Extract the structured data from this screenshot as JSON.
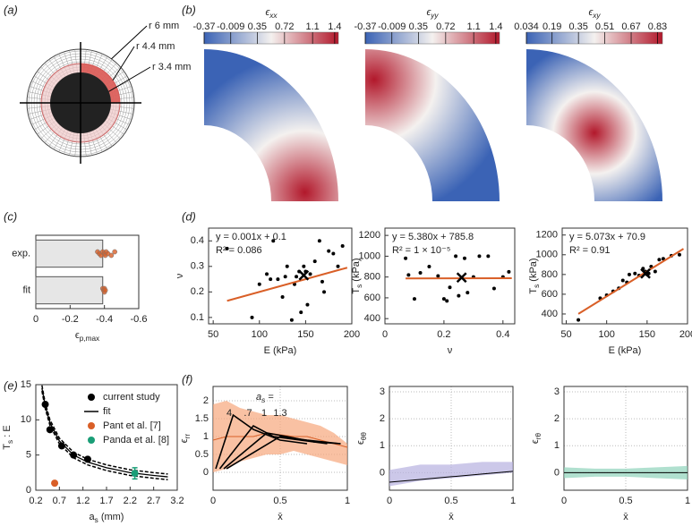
{
  "chart_data": [
    {
      "type": "annulus",
      "label": "(a)",
      "rings": [
        {
          "value": 6,
          "label": "r 6 mm"
        },
        {
          "value": 4.4,
          "label": "r 4.4 mm"
        },
        {
          "value": 3.4,
          "label": "r 3.4 mm"
        }
      ],
      "colors": [
        "#222222",
        "#f0c8c8",
        "#d9534f"
      ]
    },
    {
      "type": "heatmap",
      "label": "(b)",
      "title": {
        "main": "ϵ",
        "sub": "xx"
      },
      "clim": [
        -0.37,
        1.45
      ],
      "cticks": [
        -0.37,
        -0.009,
        0.35,
        0.72,
        1.1,
        1.4
      ],
      "colormap": [
        "#3b63b5",
        "#f4f1ef",
        "#b2182b"
      ],
      "hot": "bottom-right"
    },
    {
      "type": "heatmap",
      "title": {
        "main": "ϵ",
        "sub": "yy"
      },
      "clim": [
        -0.37,
        1.45
      ],
      "cticks": [
        -0.37,
        -0.009,
        0.35,
        0.72,
        1.1,
        1.4
      ],
      "colormap": [
        "#3b63b5",
        "#f4f1ef",
        "#b2182b"
      ],
      "hot": "top-left"
    },
    {
      "type": "heatmap",
      "title": {
        "main": "ϵ",
        "sub": "xy"
      },
      "clim": [
        0.034,
        0.86
      ],
      "cticks": [
        0.034,
        0.19,
        0.35,
        0.51,
        0.67,
        0.83
      ],
      "colormap": [
        "#3b63b5",
        "#f4f1ef",
        "#b2182b"
      ],
      "hot": "diagonal"
    },
    {
      "type": "hbar",
      "label": "(c)",
      "categories": [
        "exp.",
        "fit"
      ],
      "values": [
        -0.39,
        -0.39
      ],
      "color": "#e6e6e6",
      "points": [
        [
          -0.36,
          -0.37,
          -0.38,
          -0.39,
          -0.4,
          -0.405,
          -0.41,
          -0.42,
          -0.44,
          -0.46
        ],
        [
          -0.39,
          -0.395,
          -0.4,
          -0.4,
          -0.405
        ]
      ],
      "point_color": "#d95f27",
      "xlim": [
        0,
        -0.6
      ],
      "xticks": [
        0,
        -0.2,
        -0.4,
        -0.6
      ],
      "xlabel": {
        "main": "ϵ",
        "sub": "p,max"
      }
    },
    {
      "type": "scatter",
      "label": "(d)",
      "x": [
        65,
        92,
        100,
        108,
        112,
        115,
        120,
        125,
        128,
        130,
        135,
        138,
        140,
        143,
        145,
        148,
        150,
        152,
        155,
        160,
        165,
        168,
        170,
        175,
        180,
        185,
        190
      ],
      "values": [
        0.37,
        0.1,
        0.23,
        0.27,
        0.25,
        0.4,
        0.25,
        0.18,
        0.26,
        0.3,
        0.09,
        0.23,
        0.26,
        0.28,
        0.12,
        0.3,
        0.28,
        0.15,
        0.27,
        0.32,
        0.4,
        0.24,
        0.2,
        0.36,
        0.35,
        0.3,
        0.38
      ],
      "color": "#000000",
      "mean": {
        "x": 148,
        "y": 0.265
      },
      "fit": {
        "x": [
          65,
          195
        ],
        "slope": 0.001,
        "intercept": 0.1,
        "color": "#d95f27",
        "equation": "y = 0.001x + 0.1",
        "r2": "R² = 0.086"
      },
      "xlim": [
        45,
        200
      ],
      "xticks": [
        50,
        100,
        150,
        200
      ],
      "ylim": [
        0.075,
        0.45
      ],
      "yticks": [
        0.1,
        0.2,
        0.3,
        0.4
      ],
      "xlabel": "E (kPa)",
      "ylabel": "ν"
    },
    {
      "type": "scatter",
      "x": [
        0.07,
        0.08,
        0.1,
        0.12,
        0.15,
        0.18,
        0.2,
        0.21,
        0.22,
        0.24,
        0.25,
        0.27,
        0.28,
        0.3,
        0.32,
        0.35,
        0.37,
        0.4,
        0.42
      ],
      "values": [
        980,
        820,
        590,
        840,
        900,
        810,
        590,
        570,
        700,
        1000,
        620,
        980,
        650,
        800,
        1000,
        1000,
        690,
        800,
        850
      ],
      "color": "#000000",
      "mean": {
        "x": 0.26,
        "y": 795
      },
      "fit": {
        "x": [
          0.07,
          0.43
        ],
        "slope": 5.38,
        "intercept": 785.8,
        "color": "#d95f27",
        "equation": "y = 5.380x + 785.8",
        "r2": "R² = 1 × 10⁻⁵"
      },
      "xlim": [
        0,
        0.44
      ],
      "xticks": [
        0,
        0.2,
        0.4
      ],
      "ylim": [
        350,
        1270
      ],
      "yticks": [
        400,
        600,
        800,
        1000,
        1200
      ],
      "xlabel": "ν",
      "ylabel": {
        "main": "T",
        "sub": "s",
        "rest": " (kPa)"
      }
    },
    {
      "type": "scatter",
      "x": [
        65,
        92,
        100,
        108,
        115,
        120,
        125,
        128,
        135,
        140,
        145,
        148,
        150,
        152,
        155,
        160,
        165,
        170,
        180,
        190
      ],
      "values": [
        340,
        560,
        590,
        630,
        660,
        740,
        720,
        800,
        810,
        790,
        860,
        830,
        800,
        810,
        880,
        830,
        950,
        960,
        990,
        1000
      ],
      "color": "#000000",
      "mean": {
        "x": 148,
        "y": 810
      },
      "fit": {
        "x": [
          65,
          195
        ],
        "slope": 5.073,
        "intercept": 70.9,
        "color": "#d95f27",
        "equation": "y = 5.073x + 70.9",
        "r2": "R² = 0.91"
      },
      "xlim": [
        45,
        200
      ],
      "xticks": [
        50,
        100,
        150,
        200
      ],
      "ylim": [
        300,
        1270
      ],
      "yticks": [
        400,
        600,
        800,
        1000,
        1200
      ],
      "xlabel": "E (kPa)",
      "ylabel": {
        "main": "T",
        "sub": "s",
        "rest": " (kPa)"
      }
    },
    {
      "type": "line",
      "label": "(e)",
      "series": [
        {
          "name": "current study",
          "mode": "markers",
          "color": "#000000",
          "x": [
            0.4,
            0.5,
            0.75,
            1.0,
            1.3
          ],
          "values": [
            12.2,
            8.6,
            6.3,
            5.0,
            4.4
          ]
        },
        {
          "name": "fit",
          "mode": "line",
          "color": "#000000",
          "x": [
            0.33,
            0.4,
            0.5,
            0.7,
            1,
            1.3,
            1.7,
            2.2,
            2.7,
            3.0
          ],
          "values": [
            14.5,
            12,
            9.6,
            7,
            5,
            4,
            3.2,
            2.5,
            2.1,
            1.9
          ]
        },
        {
          "mode": "dashed",
          "color": "#000000",
          "x": [
            0.33,
            0.4,
            0.5,
            0.7,
            1,
            1.3,
            1.7,
            2.2,
            2.7,
            3.0
          ],
          "values": [
            14.9,
            12.4,
            10,
            7.4,
            5.4,
            4.4,
            3.6,
            2.9,
            2.5,
            2.3
          ]
        },
        {
          "mode": "dashed",
          "color": "#000000",
          "x": [
            0.33,
            0.4,
            0.5,
            0.7,
            1,
            1.3,
            1.7,
            2.2,
            2.7,
            3.0
          ],
          "values": [
            14.1,
            11.6,
            9.2,
            6.6,
            4.6,
            3.6,
            2.8,
            2.1,
            1.7,
            1.5
          ]
        },
        {
          "name": "Pant et al. [7]",
          "mode": "markers",
          "color": "#d95f27",
          "x": [
            0.6
          ],
          "values": [
            1
          ]
        },
        {
          "name": "Panda et al. [8]",
          "mode": "markers",
          "color": "#1a9e77",
          "x": [
            2.3
          ],
          "values": [
            2.4
          ],
          "error": [
            0.8
          ]
        }
      ],
      "xlim": [
        0.2,
        3.2
      ],
      "xticks": [
        0.2,
        0.7,
        1.2,
        1.7,
        2.2,
        2.7,
        3.2
      ],
      "ylim": [
        0,
        15
      ],
      "yticks": [
        0,
        5,
        10,
        15
      ],
      "xlabel": {
        "main": "a",
        "sub": "s",
        "rest": " (mm)"
      },
      "ylabel": {
        "main": "T",
        "sub": "s",
        "rest": " : E"
      }
    },
    {
      "type": "band",
      "label": "(f)",
      "x": [
        0,
        0.1,
        0.2,
        0.3,
        0.4,
        0.5,
        0.6,
        0.7,
        0.8,
        0.9,
        1
      ],
      "band": {
        "lower": [
          0,
          0.1,
          0.3,
          0.4,
          0.5,
          0.5,
          0.6,
          0.5,
          0.4,
          0.3,
          0.2
        ],
        "upper": [
          1.9,
          2.0,
          1.8,
          1.7,
          1.6,
          1.6,
          1.5,
          1.4,
          1.3,
          1.1,
          0.8
        ],
        "color": "#f6a77c"
      },
      "series": [
        {
          "color": "#d95f27",
          "x": [
            0,
            0.1,
            0.2,
            0.3,
            0.4,
            0.5,
            0.6,
            0.7,
            0.8,
            0.9,
            1
          ],
          "values": [
            0.9,
            1.0,
            1.0,
            1.0,
            1.1,
            1.05,
            1.0,
            1.0,
            0.9,
            0.8,
            0.7
          ]
        },
        {
          "color": "#000000",
          "x": [
            0.02,
            0.15,
            0.3,
            0.5,
            0.7
          ],
          "values": [
            0.1,
            1.6,
            1.2,
            0.9,
            0.8
          ]
        },
        {
          "color": "#000000",
          "x": [
            0.05,
            0.3,
            0.45,
            0.65,
            0.85
          ],
          "values": [
            0.1,
            1.3,
            1.0,
            0.9,
            0.8
          ]
        },
        {
          "color": "#000000",
          "x": [
            0.08,
            0.4,
            0.55,
            0.75,
            0.95
          ],
          "values": [
            0.1,
            1.1,
            1.0,
            0.85,
            0.8
          ]
        },
        {
          "color": "#000000",
          "x": [
            0.1,
            0.5,
            0.7,
            0.95
          ],
          "values": [
            0.1,
            1.0,
            0.9,
            0.8
          ]
        }
      ],
      "annotation": {
        "main": "a",
        "sub": "s",
        "rest": " ="
      },
      "annotation_values": [
        "4",
        ".7",
        "1",
        "1.3"
      ],
      "grid": true,
      "xlim": [
        0,
        1
      ],
      "xticks": [
        0,
        0.5,
        1
      ],
      "ylim": [
        -0.5,
        2.4
      ],
      "yticks": [
        0,
        0.5,
        1,
        1.5,
        2
      ],
      "xlabel": "x̄",
      "ylabel": {
        "main": "ϵ",
        "sub": "rr"
      }
    },
    {
      "type": "band",
      "x": [
        0,
        0.25,
        0.5,
        0.75,
        1
      ],
      "band": {
        "lower": [
          -0.5,
          -0.3,
          -0.2,
          -0.1,
          0
        ],
        "upper": [
          0.1,
          0.3,
          0.3,
          0.4,
          0.4
        ],
        "color": "#b7b1e0"
      },
      "series": [
        {
          "color": "#000000",
          "x": [
            0,
            0.25,
            0.5,
            0.75,
            1
          ],
          "values": [
            -0.35,
            -0.25,
            -0.15,
            -0.05,
            0.05
          ]
        }
      ],
      "grid": true,
      "xlim": [
        0,
        1
      ],
      "xticks": [
        0,
        0.5,
        1
      ],
      "ylim": [
        -0.65,
        3.2
      ],
      "yticks": [
        0,
        1,
        2,
        3
      ],
      "xlabel": "x̄",
      "ylabel": {
        "main": "ϵ",
        "sub": "θθ"
      }
    },
    {
      "type": "band",
      "x": [
        0,
        0.25,
        0.5,
        0.75,
        1
      ],
      "band": {
        "lower": [
          -0.2,
          -0.15,
          -0.15,
          -0.2,
          -0.25
        ],
        "upper": [
          0.2,
          0.15,
          0.15,
          0.2,
          0.25
        ],
        "color": "#8fd3bb"
      },
      "series": [
        {
          "color": "#000000",
          "x": [
            0,
            0.25,
            0.5,
            0.75,
            1
          ],
          "values": [
            0,
            0,
            0,
            0,
            0
          ]
        }
      ],
      "grid": true,
      "xlim": [
        0,
        1
      ],
      "xticks": [
        0,
        0.5,
        1
      ],
      "ylim": [
        -0.65,
        3.2
      ],
      "yticks": [
        0,
        1,
        2,
        3
      ],
      "xlabel": "x̄",
      "ylabel": {
        "main": "ϵ",
        "sub": "rθ"
      }
    }
  ]
}
